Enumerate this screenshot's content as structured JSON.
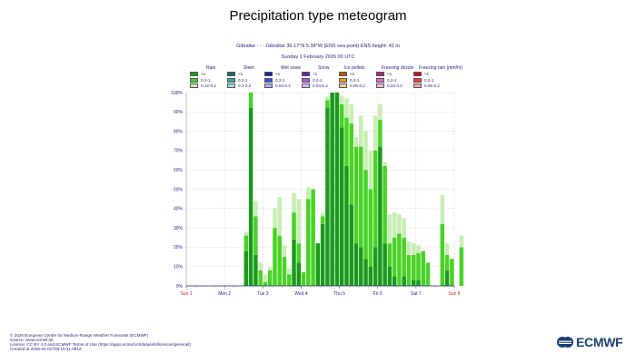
{
  "title": "Precipitation type meteogram",
  "location_line": "Gibraltar - - - Gibraltar 36.17°N 5.38°W (ENS sea point) ENS height: 42 m",
  "date_line": "Sunday 1 February 2026 00 UTC",
  "legend": {
    "groups": [
      {
        "name": "Rain",
        "items": [
          {
            "label": ">1",
            "color": "#1a9a1a"
          },
          {
            "label": "0.2-1",
            "color": "#47d324"
          },
          {
            "label": "0.12-0.2",
            "color": "#c8eeb4"
          }
        ]
      },
      {
        "name": "Sleet",
        "items": [
          {
            "label": ">1",
            "color": "#1c6a5c"
          },
          {
            "label": "0.2-1",
            "color": "#2fae98"
          },
          {
            "label": "0.1-0.2",
            "color": "#9ee6d6"
          }
        ]
      },
      {
        "name": "Wet snow",
        "items": [
          {
            "label": ">1",
            "color": "#102a9a"
          },
          {
            "label": "0.2-1",
            "color": "#3f55f0"
          },
          {
            "label": "0.04-0.2",
            "color": "#a9b6f8"
          }
        ]
      },
      {
        "name": "Snow",
        "items": [
          {
            "label": ">1",
            "color": "#6a22a8"
          },
          {
            "label": "0.2-1",
            "color": "#a458e4"
          },
          {
            "label": "0.04-0.2",
            "color": "#dcbcf4"
          }
        ]
      },
      {
        "name": "Ice pellets",
        "items": [
          {
            "label": ">1",
            "color": "#b85a0a"
          },
          {
            "label": "0.2-1",
            "color": "#f09a22"
          },
          {
            "label": "0.05-0.2",
            "color": "#f8d29a"
          }
        ]
      },
      {
        "name": "Freezing drizzle",
        "items": [
          {
            "label": ">1",
            "color": "#b4208a"
          },
          {
            "label": "0.2-1",
            "color": "#ec62c4"
          },
          {
            "label": "0.03-0.2",
            "color": "#f8c2ea"
          }
        ]
      },
      {
        "name": "Freezing rain (mm/hr)",
        "items": [
          {
            "label": ">1",
            "color": "#c80c2a"
          },
          {
            "label": "0.2-1",
            "color": "#f4384a"
          },
          {
            "label": "0.05-0.2",
            "color": "#f8a8b4"
          }
        ]
      }
    ]
  },
  "chart_data": {
    "type": "bar",
    "stacked": true,
    "title": "Precipitation type meteogram",
    "x_ticks": [
      "Sun 1",
      "Mon 2",
      "Tue 3",
      "Wed 4",
      "Thu 5",
      "Fri 6",
      "Sat 7",
      "Sun 8"
    ],
    "x_tick_colors": [
      "#e02020",
      "#1f1f7a",
      "#1f1f7a",
      "#1f1f7a",
      "#1f1f7a",
      "#1f1f7a",
      "#1f1f7a",
      "#e02020"
    ],
    "x_range": [
      0,
      168
    ],
    "bar_width_hours": 3,
    "y_ticks": [
      "0%",
      "10%",
      "20%",
      "30%",
      "40%",
      "50%",
      "60%",
      "70%",
      "80%",
      "90%",
      "100%"
    ],
    "ylim": [
      0,
      100
    ],
    "grid": true,
    "series": [
      {
        "name": ">1",
        "color": "#1a9a1a",
        "values": [
          0,
          0,
          0,
          0,
          0,
          0,
          0,
          0,
          0,
          0,
          0,
          0,
          18,
          92,
          16,
          0,
          0,
          0,
          0,
          0,
          0,
          0,
          24,
          12,
          0,
          0,
          0,
          22,
          32,
          92,
          100,
          100,
          82,
          62,
          42,
          22,
          20,
          14,
          10,
          20,
          72,
          22,
          10,
          5,
          0,
          5,
          0,
          3,
          3,
          0,
          0,
          0,
          0,
          0,
          8,
          0,
          0,
          0,
          0,
          0
        ]
      },
      {
        "name": "0.2-1",
        "color": "#47d324",
        "values": [
          0,
          0,
          0,
          0,
          0,
          0,
          0,
          0,
          0,
          0,
          0,
          0,
          8,
          8,
          20,
          8,
          2,
          8,
          30,
          26,
          15,
          6,
          14,
          10,
          7,
          45,
          50,
          0,
          4,
          4,
          0,
          0,
          12,
          25,
          42,
          50,
          52,
          46,
          40,
          50,
          14,
          40,
          12,
          20,
          27,
          20,
          16,
          13,
          14,
          18,
          12,
          0,
          0,
          32,
          8,
          14,
          0,
          20,
          0,
          0
        ]
      },
      {
        "name": "0.12-0.2",
        "color": "#c8eeb4",
        "values": [
          0,
          0,
          0,
          0,
          0,
          0,
          0,
          0,
          0,
          0,
          0,
          0,
          2,
          0,
          8,
          4,
          4,
          2,
          10,
          20,
          6,
          3,
          10,
          23,
          0,
          6,
          0,
          0,
          2,
          2,
          0,
          0,
          4,
          10,
          10,
          5,
          16,
          20,
          20,
          18,
          8,
          2,
          15,
          13,
          10,
          10,
          7,
          6,
          4,
          0,
          0,
          0,
          0,
          15,
          6,
          0,
          0,
          6,
          0,
          0
        ]
      }
    ]
  },
  "footer": {
    "line1": "© 2026 European Centre for Medium-Range Weather Forecasts (ECMWF)",
    "line2": "Source: www.ecmwf.int",
    "line3": "Licence: CC BY 4.0 and ECMWF Terms of Use (https://apps.ecmwf.int/datasets/licences/general/)",
    "line4": "Created at 2026-02-01T09:19:31.081Z"
  },
  "logo_text": "ECMWF",
  "colors": {
    "text_navy": "#1f1f7a",
    "grid": "#c8c8c8",
    "logo": "#1b3f73"
  }
}
